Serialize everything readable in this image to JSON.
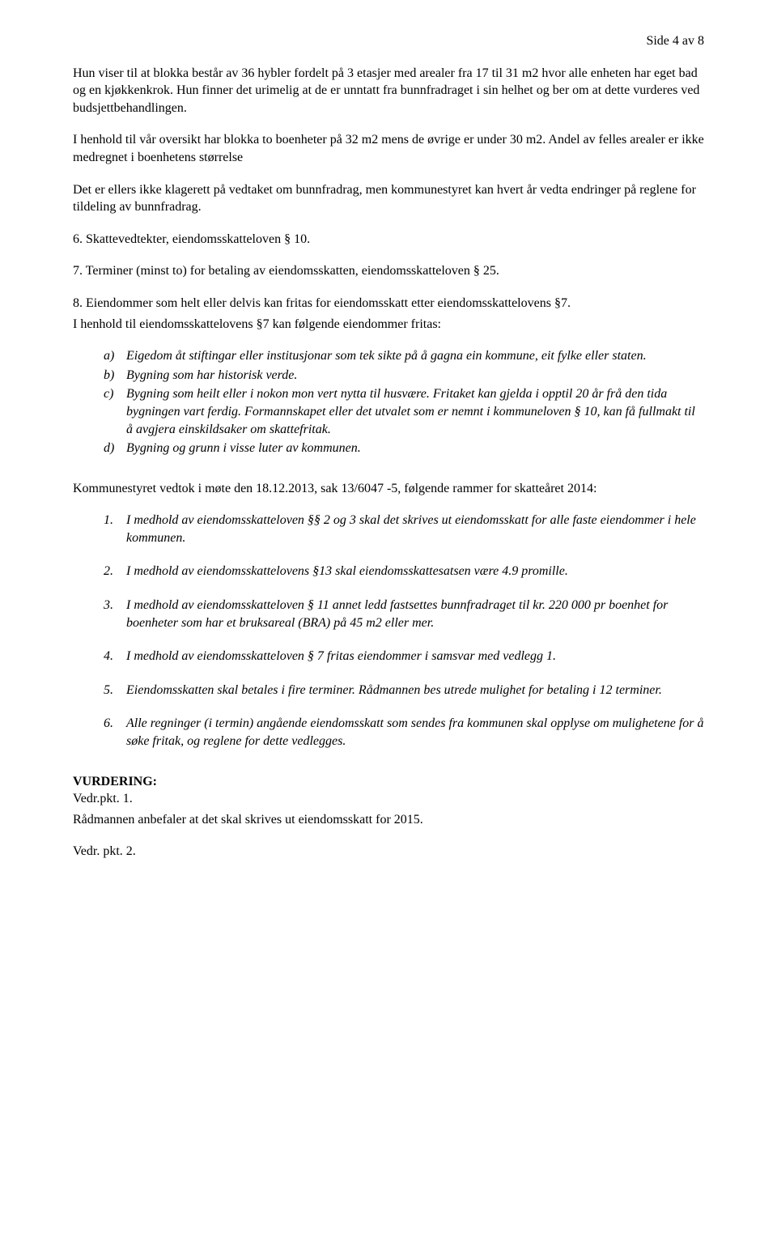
{
  "pageNumber": "Side 4 av 8",
  "intro": {
    "p1": " Hun viser til at blokka består av 36 hybler fordelt på 3 etasjer med arealer  fra 17 til 31 m2 hvor alle enheten har eget bad og en kjøkkenkrok. Hun finner det urimelig at de er unntatt fra bunnfradraget i sin helhet og ber om at dette vurderes ved budsjettbehandlingen.",
    "p2": "I henhold til vår oversikt har blokka  to boenheter på 32 m2  mens de øvrige er under 30 m2. Andel av felles arealer er ikke medregnet i boenhetens størrelse",
    "p3": "Det er ellers ikke klagerett på vedtaket om bunnfradrag, men kommunestyret kan hvert år vedta endringer  på reglene for tildeling av bunnfradrag."
  },
  "numbered": {
    "n6": "6. Skattevedtekter,  eiendomsskatteloven § 10.",
    "n7": "7. Terminer (minst to) for betaling av eiendomsskatten, eiendomsskatteloven § 25.",
    "n8a": "8. Eiendommer som helt eller delvis kan fritas for eiendomsskatt etter eiendomsskattelovens §7.",
    "n8b": "I henhold til eiendomsskattelovens §7 kan følgende eiendommer fritas:"
  },
  "lettered": {
    "a": {
      "marker": "a)",
      "text": "Eigedom åt stiftingar eller institusjonar som tek sikte på å gagna ein kommune, eit fylke eller staten."
    },
    "b": {
      "marker": "b)",
      "text": "Bygning som har historisk verde."
    },
    "c": {
      "marker": "c)",
      "text": "Bygning som heilt eller i nokon mon vert nytta til husvære. Fritaket kan gjelda i opptil 20 år frå den tida bygningen vart ferdig. Formannskapet eller det utvalet som er nemnt i kommuneloven § 10, kan få fullmakt til å avgjera einskildsaker om skattefritak."
    },
    "d": {
      "marker": "d)",
      "text": "Bygning og grunn i visse luter av kommunen."
    }
  },
  "vedtok": "Kommunestyret vedtok i møte den 18.12.2013, sak 13/6047 -5,  følgende rammer for skatteåret 2014:",
  "resolutions": {
    "r1": {
      "marker": "1.",
      "text": "I medhold av eiendomsskatteloven §§ 2 og 3 skal det skrives ut eiendomsskatt for alle faste eiendommer i hele kommunen."
    },
    "r2": {
      "marker": "2.",
      "text": "I medhold av eiendomsskattelovens §13 skal eiendomsskattesatsen være  4.9 promille."
    },
    "r3": {
      "marker": "3.",
      "text": "I medhold av eiendomsskatteloven § 11 annet ledd fastsettes bunnfradraget til kr. 220 000 pr boenhet for boenheter som har et bruksareal (BRA) på  45 m2 eller mer."
    },
    "r4": {
      "marker": "4.",
      "text": "I medhold av eiendomsskatteloven § 7 fritas eiendommer i samsvar med vedlegg 1."
    },
    "r5": {
      "marker": "5.",
      "text": "Eiendomsskatten skal betales i fire terminer. Rådmannen bes utrede mulighet for betaling i 12 terminer."
    },
    "r6": {
      "marker": "6.",
      "text": "Alle regninger (i termin) angående eiendomsskatt som sendes fra kommunen skal opplyse om mulighetene for å søke fritak, og reglene for dette vedlegges."
    }
  },
  "vurdering": {
    "heading": "VURDERING:",
    "l1": "Vedr.pkt. 1.",
    "l2": "Rådmannen anbefaler at det skal skrives ut eiendomsskatt for 2015.",
    "l3": "Vedr. pkt. 2."
  }
}
